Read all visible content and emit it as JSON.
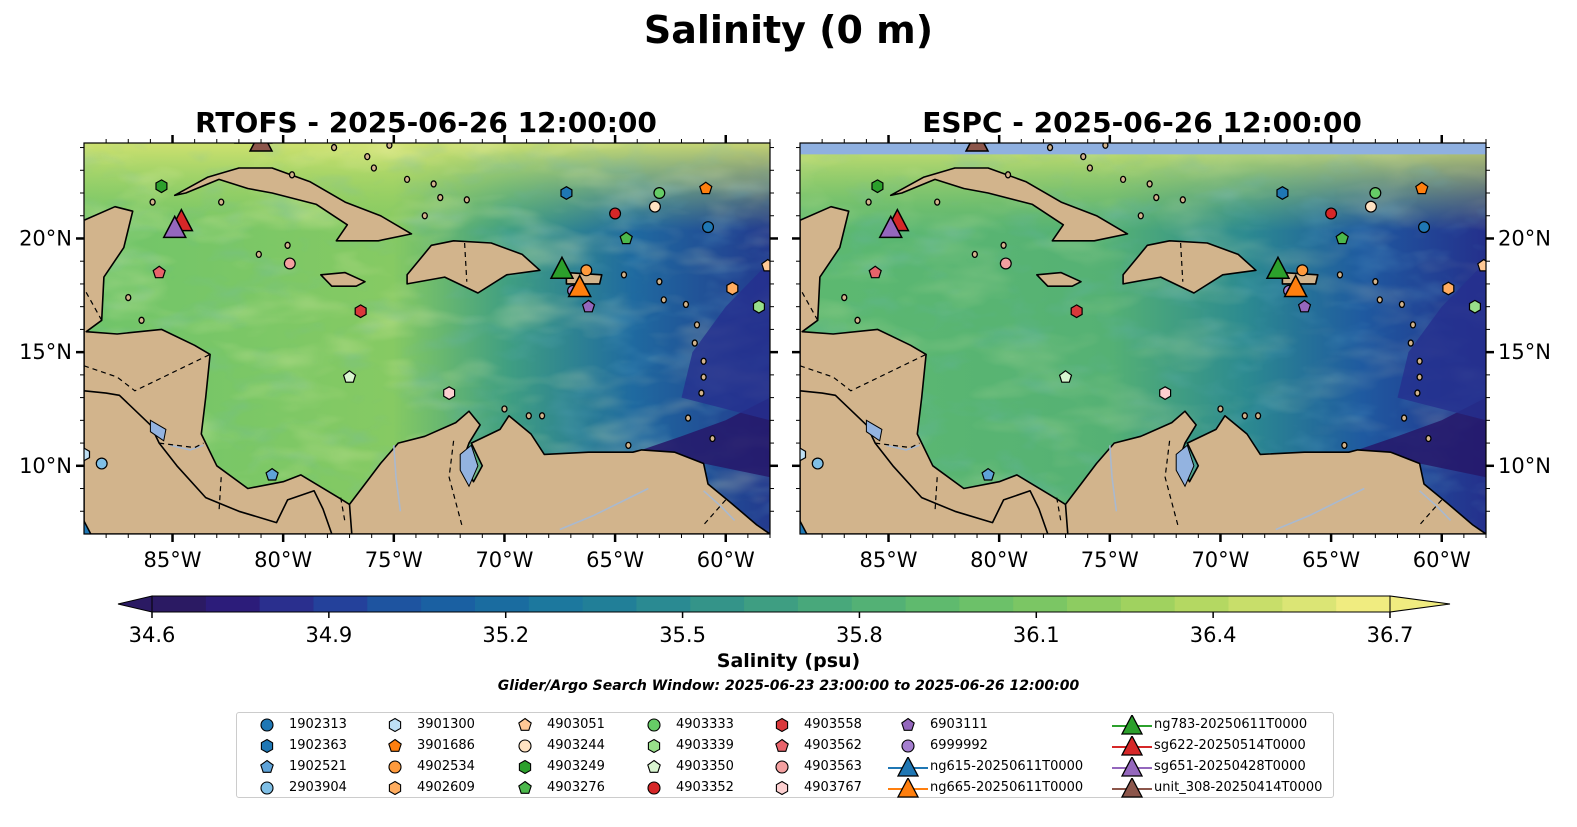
{
  "title": "Salinity (0 m)",
  "panels": [
    {
      "id": "rtofs",
      "title": "RTOFS - 2025-06-26 12:00:00"
    },
    {
      "id": "espc",
      "title": "ESPC - 2025-06-26 12:00:00"
    }
  ],
  "map_extent": {
    "lon": [
      -89,
      -58
    ],
    "lat": [
      7,
      24.2
    ]
  },
  "axes": {
    "lon_ticks": [
      {
        "lon": -85,
        "label": "85°W"
      },
      {
        "lon": -80,
        "label": "80°W"
      },
      {
        "lon": -75,
        "label": "75°W"
      },
      {
        "lon": -70,
        "label": "70°W"
      },
      {
        "lon": -65,
        "label": "65°W"
      },
      {
        "lon": -60,
        "label": "60°W"
      }
    ],
    "lat_ticks": [
      {
        "lat": 10,
        "label": "10°N"
      },
      {
        "lat": 15,
        "label": "15°N"
      },
      {
        "lat": 20,
        "label": "20°N"
      }
    ]
  },
  "colorbar": {
    "label": "Salinity (psu)",
    "min": 34.6,
    "max": 36.7,
    "ticks": [
      "34.6",
      "34.9",
      "35.2",
      "35.5",
      "35.8",
      "36.1",
      "36.4",
      "36.7"
    ],
    "colors": [
      "#2b1a63",
      "#2c1c7a",
      "#2a2f8e",
      "#24419b",
      "#1e54a0",
      "#1a60a2",
      "#1a6ca0",
      "#1c789e",
      "#217f98",
      "#2a8a92",
      "#349489",
      "#3e9e82",
      "#48a87b",
      "#53b175",
      "#5fba6e",
      "#6cc169",
      "#7bc664",
      "#8dcc61",
      "#a0d25f",
      "#b4d862",
      "#c8de6a",
      "#dbe575",
      "#f0ec80"
    ]
  },
  "colors": {
    "land": "#d2b48c",
    "lakes": "#93b3e0",
    "deep_low": "#26186a",
    "espc_band": "#8fb0e0"
  },
  "search_window": "Glider/Argo Search Window: 2025-06-23 23:00:00 to 2025-06-26 12:00:00",
  "markers": [
    {
      "name": "1902313",
      "shape": "circle",
      "color": "#1f77b4",
      "lon": -60.8,
      "lat": 20.5
    },
    {
      "name": "1902363",
      "shape": "hexagon",
      "color": "#1f77b4",
      "lon": -67.2,
      "lat": 22.0
    },
    {
      "name": "1902521",
      "shape": "pentagon",
      "color": "#5fa3d8",
      "lon": -80.5,
      "lat": 9.6
    },
    {
      "name": "2903904",
      "shape": "circle",
      "color": "#7fbfe6",
      "lon": -88.2,
      "lat": 10.1
    },
    {
      "name": "3901300",
      "shape": "hexagon",
      "color": "#bfe0f5",
      "lon": -89,
      "lat": 10.5
    },
    {
      "name": "3901686",
      "shape": "pentagon",
      "color": "#ff7f0e",
      "lon": -60.9,
      "lat": 22.2
    },
    {
      "name": "4902534",
      "shape": "circle",
      "color": "#ff9a3c",
      "lon": -66.3,
      "lat": 18.6
    },
    {
      "name": "4902609",
      "shape": "hexagon",
      "color": "#ffad60",
      "lon": -59.7,
      "lat": 17.8
    },
    {
      "name": "4903051",
      "shape": "pentagon",
      "color": "#ffc996",
      "lon": -58.1,
      "lat": 18.8
    },
    {
      "name": "4903244",
      "shape": "circle",
      "color": "#ffe2c2",
      "lon": -63.2,
      "lat": 21.4
    },
    {
      "name": "4903249",
      "shape": "hexagon",
      "color": "#2ca02c",
      "lon": -85.5,
      "lat": 22.3
    },
    {
      "name": "4903276",
      "shape": "pentagon",
      "color": "#4cb84c",
      "lon": -64.5,
      "lat": 20.0
    },
    {
      "name": "4903333",
      "shape": "circle",
      "color": "#66cc66",
      "lon": -63,
      "lat": 22.0
    },
    {
      "name": "4903339",
      "shape": "hexagon",
      "color": "#98df8a",
      "lon": -58.5,
      "lat": 17.0
    },
    {
      "name": "4903350",
      "shape": "pentagon",
      "color": "#d9f5d0",
      "lon": -77,
      "lat": 13.9
    },
    {
      "name": "4903352",
      "shape": "circle",
      "color": "#d62728",
      "lon": -65,
      "lat": 21.1
    },
    {
      "name": "4903558",
      "shape": "hexagon",
      "color": "#d9383b",
      "lon": -76.5,
      "lat": 16.8
    },
    {
      "name": "4903562",
      "shape": "pentagon",
      "color": "#e8636b",
      "lon": -85.6,
      "lat": 18.5
    },
    {
      "name": "4903563",
      "shape": "circle",
      "color": "#f4a0a0",
      "lon": -79.7,
      "lat": 18.9
    },
    {
      "name": "4903767",
      "shape": "hexagon",
      "color": "#fccfd0",
      "lon": -72.5,
      "lat": 13.2
    },
    {
      "name": "6903111",
      "shape": "pentagon",
      "color": "#9467bd",
      "lon": -66.2,
      "lat": 17.0
    },
    {
      "name": "6999992",
      "shape": "circle",
      "color": "#a57fd0",
      "lon": -66.9,
      "lat": 17.7
    },
    {
      "name": "ng615-20250611T0000",
      "shape": "triangle",
      "color": "#1f77b4",
      "lon": -89,
      "lat": 7
    },
    {
      "name": "ng665-20250611T0000",
      "shape": "triangle",
      "color": "#ff7f0e",
      "lon": -66.6,
      "lat": 17.8
    },
    {
      "name": "ng783-20250611T0000",
      "shape": "triangle",
      "color": "#2ca02c",
      "lon": -67.4,
      "lat": 18.6
    },
    {
      "name": "sg622-20250514T0000",
      "shape": "triangle",
      "color": "#d62728",
      "lon": -84.6,
      "lat": 20.7
    },
    {
      "name": "sg651-20250428T0000",
      "shape": "triangle",
      "color": "#9467bd",
      "lon": -84.9,
      "lat": 20.4
    },
    {
      "name": "unit_308-20250414T0000",
      "shape": "triangle",
      "color": "#8c564b",
      "lon": -81,
      "lat": 24.2
    }
  ]
}
